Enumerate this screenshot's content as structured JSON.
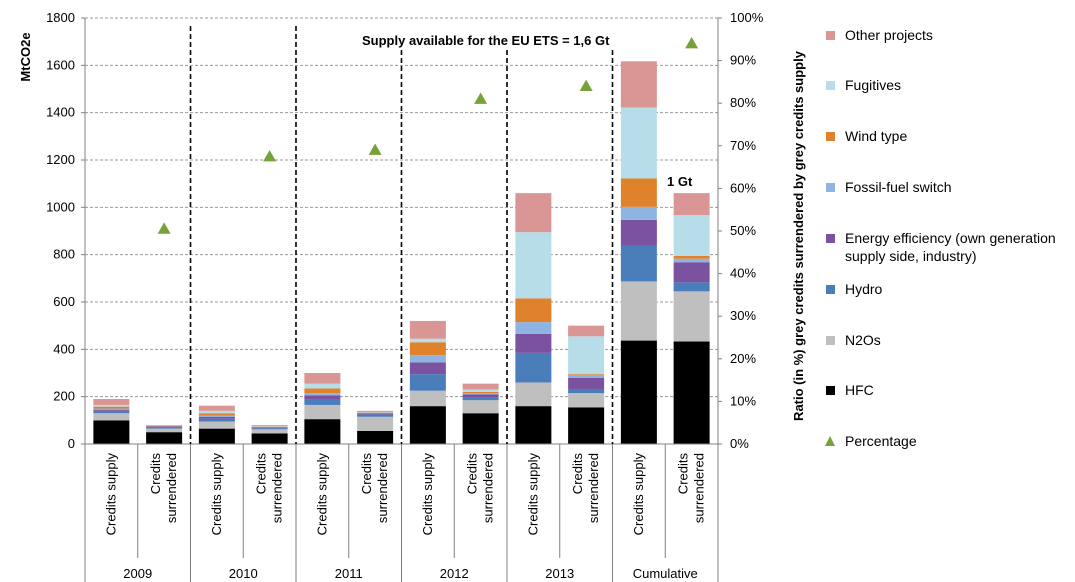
{
  "chart_data": {
    "type": "bar",
    "stacked": true,
    "ylabel": "MtCO2e",
    "ylabel_right": "Ratio (in %) grey credits surrendered by grey credits supply",
    "ylim": [
      0,
      1800
    ],
    "yticks": [
      "0",
      "200",
      "400",
      "600",
      "800",
      "1000",
      "1200",
      "1400",
      "1600",
      "1800"
    ],
    "ylim_right": [
      0,
      100
    ],
    "yticks_right": [
      "0%",
      "10%",
      "20%",
      "30%",
      "40%",
      "50%",
      "60%",
      "70%",
      "80%",
      "90%",
      "100%"
    ],
    "grid": true,
    "legend_position": "right",
    "categories": [
      "Credits supply",
      "Credits surrendered",
      "Credits supply",
      "Credits surrendered",
      "Credits supply",
      "Credits surrendered",
      "Credits supply",
      "Credits surrendered",
      "Credits supply",
      "Credits surrendered",
      "Credits supply",
      "Credits surrendered"
    ],
    "groups": [
      "2009",
      "2010",
      "2011",
      "2012",
      "2013",
      "Cumulative"
    ],
    "series": [
      {
        "name": "HFC",
        "color": "#000000",
        "values": [
          100,
          50,
          65,
          45,
          105,
          55,
          160,
          130,
          160,
          155,
          437,
          433
        ]
      },
      {
        "name": "N2Os",
        "color": "#bfbfbf",
        "values": [
          30,
          15,
          30,
          17,
          60,
          60,
          65,
          55,
          100,
          60,
          250,
          212
        ]
      },
      {
        "name": "Hydro",
        "color": "#4a7ebb",
        "values": [
          10,
          5,
          12,
          5,
          25,
          10,
          70,
          10,
          125,
          15,
          150,
          38
        ]
      },
      {
        "name": "Energy efficiency (own generation supply side, industry)",
        "color": "#7a52a0",
        "values": [
          5,
          4,
          8,
          4,
          15,
          5,
          50,
          15,
          80,
          50,
          110,
          85
        ]
      },
      {
        "name": "Fossil-fuel switch",
        "color": "#8eb4e3",
        "values": [
          5,
          1,
          5,
          1,
          10,
          2,
          30,
          5,
          50,
          10,
          55,
          15
        ]
      },
      {
        "name": "Wind type",
        "color": "#e0822c",
        "values": [
          8,
          1,
          10,
          1,
          20,
          1,
          55,
          5,
          100,
          5,
          120,
          12
        ]
      },
      {
        "name": "Fugitives",
        "color": "#b7dde8",
        "values": [
          7,
          1,
          10,
          2,
          20,
          2,
          15,
          10,
          280,
          160,
          300,
          172
        ]
      },
      {
        "name": "Other projects",
        "color": "#d99694",
        "values": [
          25,
          3,
          22,
          5,
          45,
          5,
          75,
          25,
          165,
          45,
          195,
          93
        ]
      }
    ],
    "percentage": {
      "name": "Percentage",
      "color": "#77a13a",
      "values": [
        50.5,
        67.5,
        69,
        81,
        84,
        94
      ]
    },
    "annotations": [
      {
        "text": "Supply available for the EU ETS = 1,6 Gt"
      },
      {
        "text": "1 Gt"
      }
    ]
  }
}
